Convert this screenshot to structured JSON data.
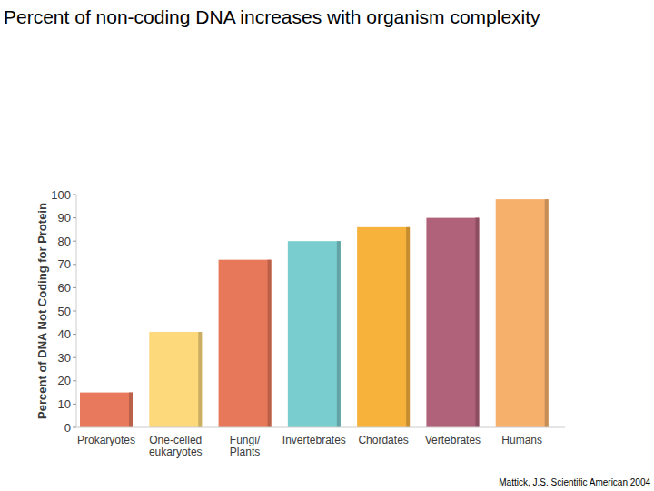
{
  "chart_data": {
    "type": "bar",
    "title": "Percent of non-coding DNA increases with organism complexity",
    "y_label": "Percent of DNA Not Coding for Protein",
    "categories": [
      "Prokaryotes",
      "One-celled\neukaryotes",
      "Fungi/\nPlants",
      "Invertebrates",
      "Chordates",
      "Vertebrates",
      "Humans"
    ],
    "values": [
      15,
      41,
      72,
      80,
      86,
      90,
      98
    ],
    "colors": [
      "#e8795c",
      "#fdd97c",
      "#e8785a",
      "#7acdcf",
      "#f7b23c",
      "#b1627b",
      "#f7b06c"
    ],
    "ylim": [
      0,
      100
    ],
    "yticks": [
      0,
      10,
      20,
      30,
      40,
      50,
      60,
      70,
      80,
      90,
      100
    ],
    "grid": false,
    "annotations": [
      "Mattick, J.S. Scientific American 2004"
    ]
  }
}
